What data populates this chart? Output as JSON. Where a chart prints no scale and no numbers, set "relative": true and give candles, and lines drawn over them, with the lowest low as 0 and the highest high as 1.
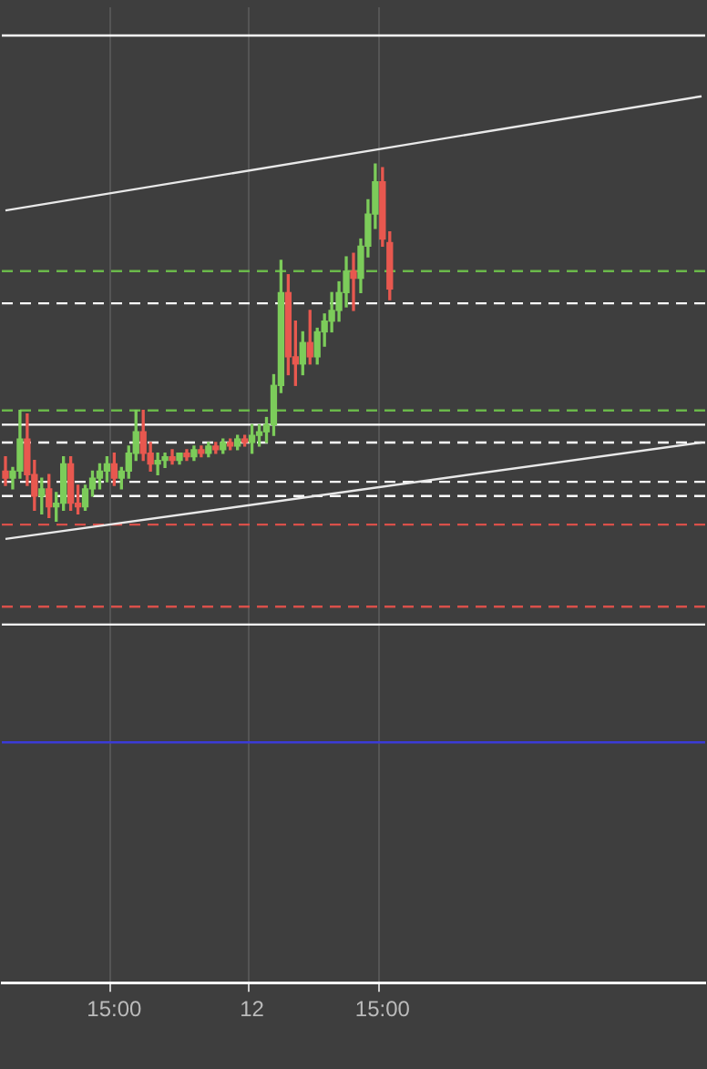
{
  "chart_data": {
    "type": "candlestick",
    "relative": true,
    "legend": false,
    "grid": "x",
    "tick_labels": "x",
    "categories": [
      null,
      null,
      null,
      null,
      null,
      null,
      null,
      null,
      null,
      null,
      null,
      null,
      null,
      null,
      null,
      "15:00",
      null,
      null,
      null,
      null,
      null,
      null,
      null,
      null,
      null,
      null,
      null,
      null,
      null,
      null,
      null,
      null,
      null,
      null,
      "12",
      null,
      null,
      null,
      null,
      null,
      null,
      null,
      null,
      null,
      null,
      null,
      null,
      null,
      null,
      null,
      null,
      null,
      "15:00",
      null,
      null,
      null,
      null,
      null,
      null,
      null,
      null,
      null,
      null,
      null,
      null,
      null,
      null,
      null,
      null,
      null,
      null,
      null,
      null,
      null,
      null,
      null,
      null,
      null,
      null,
      null,
      null,
      null,
      null,
      null,
      null,
      null,
      null,
      null,
      null,
      null,
      null,
      null,
      null,
      null,
      null,
      null,
      null
    ],
    "ohlc": [
      [
        0.14,
        0.18,
        0.1,
        0.12
      ],
      [
        0.12,
        0.15,
        0.09,
        0.14
      ],
      [
        0.14,
        0.31,
        0.12,
        0.23
      ],
      [
        0.23,
        0.3,
        0.1,
        0.13
      ],
      [
        0.13,
        0.17,
        0.03,
        0.07
      ],
      [
        0.07,
        0.12,
        0.02,
        0.09
      ],
      [
        0.09,
        0.13,
        0.01,
        0.04
      ],
      [
        0.04,
        0.08,
        0,
        0.05
      ],
      [
        0.05,
        0.18,
        0.03,
        0.16
      ],
      [
        0.16,
        0.18,
        0.03,
        0.05
      ],
      [
        0.05,
        0.1,
        0.02,
        0.04
      ],
      [
        0.04,
        0.1,
        0.03,
        0.09
      ],
      [
        0.09,
        0.14,
        0.07,
        0.12
      ],
      [
        0.12,
        0.16,
        0.09,
        0.14
      ],
      [
        0.14,
        0.18,
        0.11,
        0.16
      ],
      [
        0.16,
        0.19,
        0.1,
        0.12
      ],
      [
        0.12,
        0.15,
        0.09,
        0.14
      ],
      [
        0.14,
        0.21,
        0.12,
        0.19
      ],
      [
        0.19,
        0.31,
        0.17,
        0.25
      ],
      [
        0.25,
        0.31,
        0.17,
        0.19
      ],
      [
        0.19,
        0.22,
        0.14,
        0.16
      ],
      [
        0.16,
        0.19,
        0.13,
        0.17
      ],
      [
        0.17,
        0.19,
        0.15,
        0.18
      ],
      [
        0.18,
        0.2,
        0.16,
        0.17
      ],
      [
        0.17,
        0.19,
        0.16,
        0.19
      ],
      [
        0.19,
        0.2,
        0.17,
        0.18
      ],
      [
        0.18,
        0.21,
        0.17,
        0.2
      ],
      [
        0.2,
        0.21,
        0.18,
        0.19
      ],
      [
        0.19,
        0.22,
        0.18,
        0.21
      ],
      [
        0.21,
        0.22,
        0.19,
        0.2
      ],
      [
        0.2,
        0.23,
        0.19,
        0.22
      ],
      [
        0.22,
        0.23,
        0.2,
        0.21
      ],
      [
        0.21,
        0.24,
        0.2,
        0.23
      ],
      [
        0.23,
        0.24,
        0.21,
        0.22
      ],
      [
        0.22,
        0.27,
        0.19,
        0.24
      ],
      [
        0.24,
        0.27,
        0.21,
        0.25
      ],
      [
        0.25,
        0.29,
        0.22,
        0.27
      ],
      [
        0.27,
        0.41,
        0.24,
        0.38
      ],
      [
        0.38,
        0.73,
        0.36,
        0.64
      ],
      [
        0.64,
        0.69,
        0.41,
        0.46
      ],
      [
        0.46,
        0.56,
        0.38,
        0.44
      ],
      [
        0.44,
        0.53,
        0.41,
        0.5
      ],
      [
        0.5,
        0.59,
        0.44,
        0.46
      ],
      [
        0.46,
        0.54,
        0.44,
        0.53
      ],
      [
        0.53,
        0.58,
        0.49,
        0.56
      ],
      [
        0.56,
        0.64,
        0.53,
        0.59
      ],
      [
        0.59,
        0.67,
        0.56,
        0.64
      ],
      [
        0.64,
        0.74,
        0.6,
        0.7
      ],
      [
        0.7,
        0.75,
        0.59,
        0.68
      ],
      [
        0.68,
        0.79,
        0.64,
        0.77
      ],
      [
        0.77,
        0.9,
        0.74,
        0.86
      ],
      [
        0.86,
        1,
        0.82,
        0.95
      ],
      [
        0.95,
        0.99,
        0.77,
        0.79
      ],
      [
        0.78,
        0.81,
        0.62,
        0.65
      ],
      null,
      null,
      null,
      null,
      null,
      null,
      null,
      null,
      null,
      null,
      null,
      null,
      null,
      null,
      null,
      null,
      null,
      null,
      null,
      null,
      null,
      null,
      null,
      null,
      null,
      null,
      null,
      null,
      null,
      null,
      null,
      null,
      null,
      null,
      null,
      null,
      null,
      null,
      null,
      null,
      null,
      null,
      null
    ],
    "series": [
      {
        "type": "line",
        "color": "#e8e8e8",
        "values": [
          0.87,
          null,
          null,
          null,
          null,
          null,
          null,
          null,
          null,
          null,
          null,
          null,
          null,
          null,
          null,
          null,
          null,
          null,
          null,
          null,
          null,
          null,
          null,
          null,
          null,
          null,
          null,
          null,
          null,
          null,
          null,
          null,
          null,
          null,
          null,
          null,
          null,
          null,
          null,
          null,
          null,
          null,
          null,
          null,
          null,
          null,
          null,
          null,
          null,
          null,
          null,
          null,
          null,
          null,
          null,
          null,
          null,
          null,
          null,
          null,
          null,
          null,
          null,
          null,
          null,
          null,
          null,
          null,
          null,
          null,
          null,
          null,
          null,
          null,
          null,
          null,
          null,
          null,
          null,
          null,
          null,
          null,
          null,
          null,
          null,
          null,
          null,
          null,
          null,
          null,
          null,
          null,
          null,
          null,
          null,
          null,
          1.19
        ]
      },
      {
        "type": "line",
        "color": "#e8e8e8",
        "values": [
          -0.05,
          null,
          null,
          null,
          null,
          null,
          null,
          null,
          null,
          null,
          null,
          null,
          null,
          null,
          null,
          null,
          null,
          null,
          null,
          null,
          null,
          null,
          null,
          null,
          null,
          null,
          null,
          null,
          null,
          null,
          null,
          null,
          null,
          null,
          null,
          null,
          null,
          null,
          null,
          null,
          null,
          null,
          null,
          null,
          null,
          null,
          null,
          null,
          null,
          null,
          null,
          null,
          null,
          null,
          null,
          null,
          null,
          null,
          null,
          null,
          null,
          null,
          null,
          null,
          null,
          null,
          null,
          null,
          null,
          null,
          null,
          null,
          null,
          null,
          null,
          null,
          null,
          null,
          null,
          null,
          null,
          null,
          null,
          null,
          null,
          null,
          null,
          null,
          null,
          null,
          null,
          null,
          null,
          null,
          null,
          null,
          0.22
        ]
      }
    ],
    "ref_lines": [
      {
        "axis": "y",
        "value": 1.36,
        "color": "#ffffff",
        "line_style": "solid"
      },
      {
        "axis": "y",
        "value": 0.27,
        "color": "#ffffff",
        "line_style": "solid"
      },
      {
        "axis": "y",
        "value": -0.29,
        "color": "#ffffff",
        "line_style": "solid"
      },
      {
        "axis": "y",
        "value": -0.62,
        "color": "#3b3bd6",
        "line_style": "solid"
      },
      {
        "axis": "y",
        "value": 0.7,
        "color": "#6ab84a",
        "line_style": "dashed"
      },
      {
        "axis": "y",
        "value": 0.31,
        "color": "#6ab84a",
        "line_style": "dashed"
      },
      {
        "axis": "y",
        "value": -0.24,
        "color": "#d9504a",
        "line_style": "dashed"
      },
      {
        "axis": "y",
        "value": -0.01,
        "color": "#d9504a",
        "line_style": "dashed"
      },
      {
        "axis": "y",
        "value": 0.61,
        "color": "#ffffff",
        "line_style": "dashed"
      },
      {
        "axis": "y",
        "value": 0.22,
        "color": "#ffffff",
        "line_style": "dashed"
      },
      {
        "axis": "y",
        "value": 0.11,
        "color": "#ffffff",
        "line_style": "dashed"
      },
      {
        "axis": "y",
        "value": 0.07,
        "color": "#ffffff",
        "line_style": "dashed"
      }
    ]
  }
}
